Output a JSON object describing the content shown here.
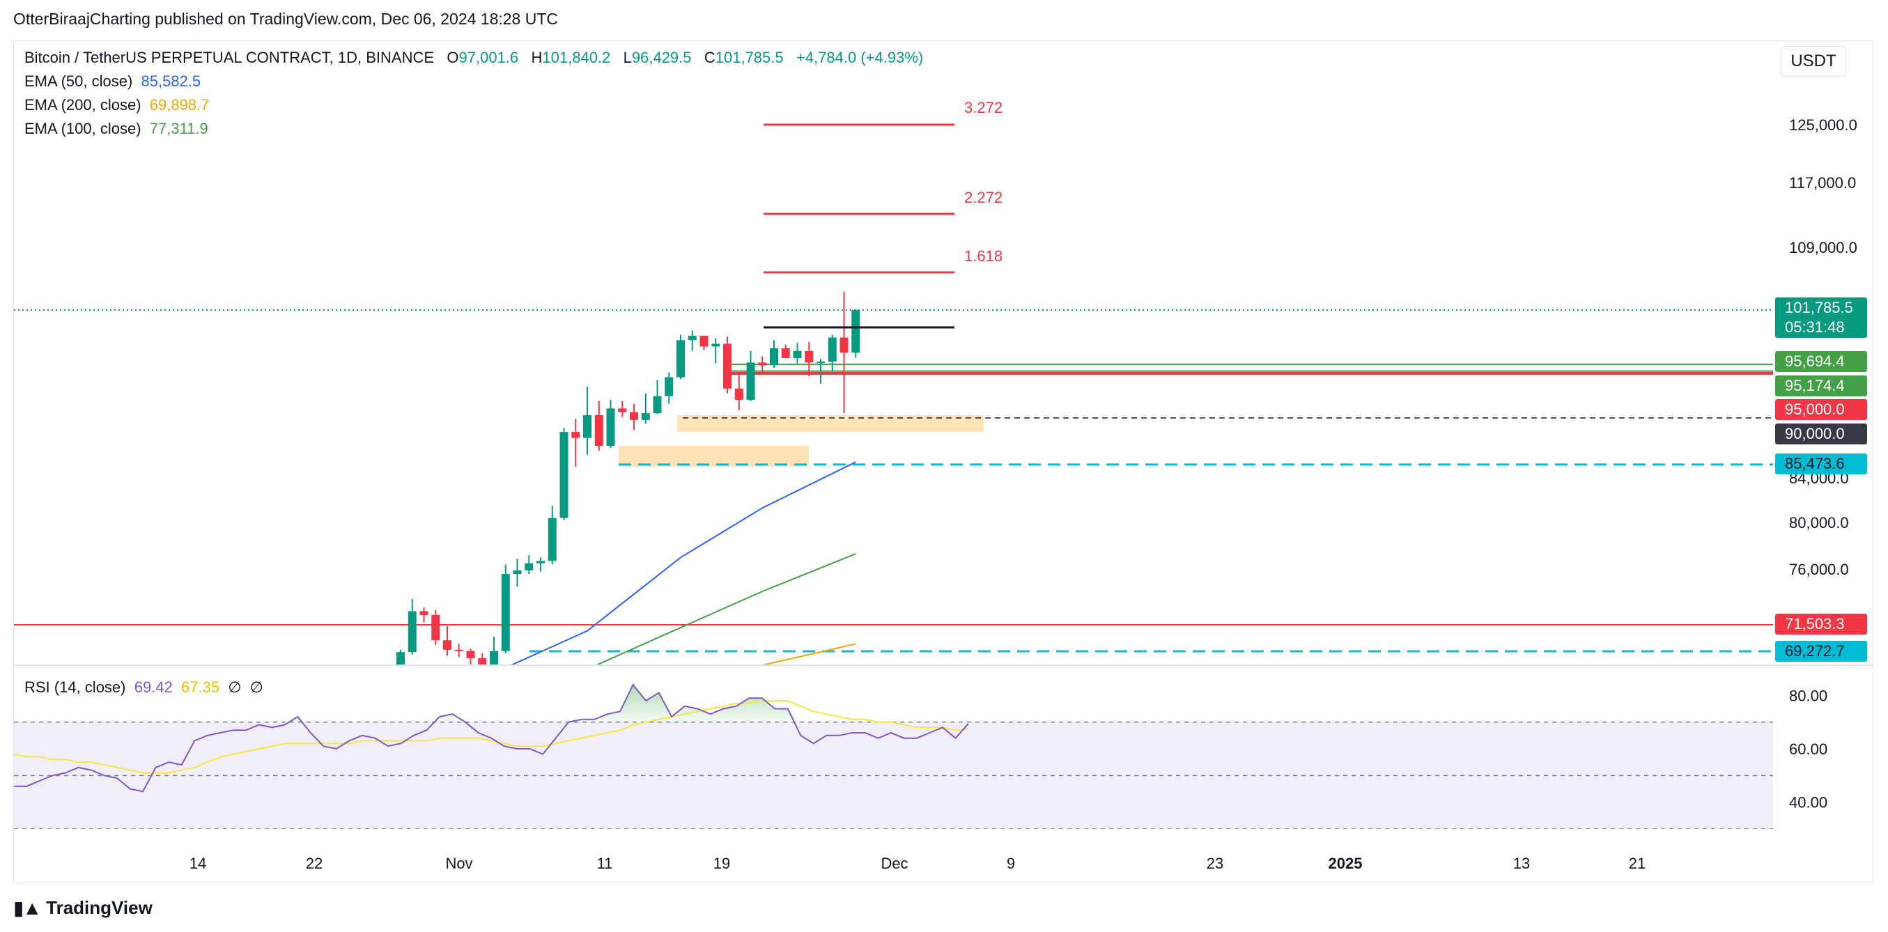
{
  "header": {
    "published": "OtterBiraajCharting published on TradingView.com, Dec 06, 2024 18:28 UTC",
    "symbol": "Bitcoin / TetherUS PERPETUAL CONTRACT, 1D, BINANCE",
    "o_label": "O",
    "o": "97,001.6",
    "h_label": "H",
    "h": "101,840.2",
    "l_label": "L",
    "l": "96,429.5",
    "c_label": "C",
    "c": "101,785.5",
    "change": "+4,784.0 (+4.93%)",
    "currency": "USDT"
  },
  "indicators": [
    {
      "label": "EMA (50, close)",
      "value": "85,582.5",
      "color": "#2962ff"
    },
    {
      "label": "EMA (200, close)",
      "value": "69,898.7",
      "color": "#f7a600"
    },
    {
      "label": "EMA (100, close)",
      "value": "77,311.9",
      "color": "#43a047"
    }
  ],
  "rsi": {
    "label": "RSI (14, close)",
    "value": "69.42",
    "ma_value": "67.35",
    "flag1": "∅",
    "flag2": "∅"
  },
  "price_axis": [
    "125,000.0",
    "117,000.0",
    "109,000.0",
    "84,000.0",
    "80,000.0",
    "76,000.0",
    "71,503.3"
  ],
  "price_tags": [
    {
      "text": "101,785.5",
      "sub": "05:31:48",
      "color": "#089981"
    },
    {
      "text": "95,694.4",
      "color": "#43a047"
    },
    {
      "text": "95,174.4",
      "color": "#43a047"
    },
    {
      "text": "95,000.0",
      "color": "#f23645"
    },
    {
      "text": "90,000.0",
      "color": "#363a45"
    },
    {
      "text": "85,473.6",
      "color": "#00bcd4",
      "text_color": "#131722"
    },
    {
      "text": "71,503.3",
      "color": "#f23645"
    },
    {
      "text": "69,272.7",
      "color": "#00bcd4",
      "text_color": "#131722"
    }
  ],
  "rsi_axis": [
    "80.00",
    "60.00",
    "40.00"
  ],
  "fib_levels": [
    "3.272",
    "2.272",
    "1.618"
  ],
  "time_axis": [
    "14",
    "22",
    "Nov",
    "11",
    "19",
    "Dec",
    "9",
    "23",
    "2025",
    "13",
    "21"
  ],
  "brand": "TradingView",
  "chart_data": {
    "type": "candlestick",
    "title": "Bitcoin / TetherUS PERPETUAL CONTRACT, 1D, BINANCE",
    "series": [
      {
        "name": "BTCUSDT.P",
        "ohlc": [
          [
            "Oct 28",
            68100,
            69400,
            67900,
            69200
          ],
          [
            "Oct 29",
            69200,
            73600,
            69000,
            72600
          ],
          [
            "Oct 30",
            72600,
            72900,
            71700,
            72300
          ],
          [
            "Oct 31",
            72300,
            72700,
            69800,
            70200
          ],
          [
            "Nov 01",
            70200,
            71400,
            68900,
            69400
          ],
          [
            "Nov 02",
            69400,
            69900,
            68800,
            69300
          ],
          [
            "Nov 03",
            69300,
            69500,
            67600,
            68700
          ],
          [
            "Nov 04",
            68700,
            69100,
            66800,
            67800
          ],
          [
            "Nov 05",
            67800,
            70500,
            67500,
            69300
          ],
          [
            "Nov 06",
            69300,
            76400,
            69100,
            75600
          ],
          [
            "Nov 07",
            75600,
            76900,
            74600,
            75900
          ],
          [
            "Nov 08",
            75900,
            77200,
            75600,
            76500
          ],
          [
            "Nov 09",
            76500,
            77000,
            75800,
            76700
          ],
          [
            "Nov 10",
            76700,
            81500,
            76400,
            80400
          ],
          [
            "Nov 11",
            80400,
            89000,
            80200,
            88600
          ],
          [
            "Nov 12",
            88600,
            89900,
            85100,
            88000
          ],
          [
            "Nov 13",
            88000,
            93300,
            86300,
            90300
          ],
          [
            "Nov 14",
            90300,
            91800,
            86700,
            87200
          ],
          [
            "Nov 15",
            87200,
            91900,
            87000,
            91000
          ],
          [
            "Nov 16",
            91000,
            91800,
            90100,
            90600
          ],
          [
            "Nov 17",
            90600,
            91500,
            88800,
            89800
          ],
          [
            "Nov 18",
            89800,
            92600,
            89400,
            90500
          ],
          [
            "Nov 19",
            90500,
            94000,
            90400,
            92300
          ],
          [
            "Nov 20",
            92300,
            94800,
            91500,
            94300
          ],
          [
            "Nov 21",
            94300,
            99000,
            94100,
            98400
          ],
          [
            "Nov 22",
            98400,
            99500,
            97200,
            98900
          ],
          [
            "Nov 23",
            98900,
            98800,
            97300,
            97700
          ],
          [
            "Nov 24",
            97700,
            98600,
            95800,
            98000
          ],
          [
            "Nov 25",
            98000,
            98800,
            92600,
            93100
          ],
          [
            "Nov 26",
            93100,
            94800,
            90800,
            91900
          ],
          [
            "Nov 27",
            91900,
            97200,
            91800,
            95900
          ],
          [
            "Nov 28",
            95900,
            96600,
            94700,
            95600
          ],
          [
            "Nov 29",
            95600,
            98400,
            95300,
            97500
          ],
          [
            "Nov 30",
            97500,
            97900,
            96400,
            96400
          ],
          [
            "Dec 01",
            96400,
            98100,
            95800,
            97200
          ],
          [
            "Dec 02",
            97200,
            98200,
            94400,
            95900
          ],
          [
            "Dec 03",
            95900,
            96300,
            93600,
            96000
          ],
          [
            "Dec 04",
            96000,
            99000,
            94700,
            98700
          ],
          [
            "Dec 05",
            98700,
            103900,
            90500,
            97000
          ],
          [
            "Dec 06",
            97001.6,
            101840.2,
            96429.5,
            101785.5
          ]
        ]
      },
      {
        "name": "EMA (50, close)",
        "points": [
          [
            "Nov 04",
            67000
          ],
          [
            "Nov 13",
            71000
          ],
          [
            "Nov 21",
            77000
          ],
          [
            "Nov 28",
            81300
          ],
          [
            "Dec 06",
            85582.5
          ]
        ]
      },
      {
        "name": "EMA (100, close)",
        "points": [
          [
            "Nov 09",
            66000
          ],
          [
            "Nov 19",
            70400
          ],
          [
            "Nov 28",
            74200
          ],
          [
            "Dec 06",
            77311.9
          ]
        ]
      },
      {
        "name": "EMA (200, close)",
        "points": [
          [
            "Nov 28",
            68100
          ],
          [
            "Dec 06",
            69898.7
          ]
        ]
      }
    ],
    "horizontal_levels": [
      95694.4,
      95174.4,
      95000.0,
      90000.0,
      85473.6,
      71503.3,
      69272.7
    ],
    "rsi_series": {
      "name": "RSI (14, close)",
      "ylim": [
        30,
        90
      ],
      "band": [
        30,
        70
      ],
      "values": [
        46,
        46,
        48,
        50,
        51,
        53,
        52,
        50,
        49,
        45,
        44,
        53,
        55,
        54,
        63,
        65,
        66,
        67,
        67,
        69,
        68,
        69,
        72,
        66,
        61,
        60,
        63,
        65,
        64,
        61,
        62,
        65,
        67,
        72,
        73,
        70,
        66,
        64,
        61,
        60,
        60,
        58,
        64,
        70,
        71,
        71,
        73,
        74,
        84,
        78,
        81,
        72,
        76,
        75,
        73,
        75,
        76,
        79,
        79,
        75,
        75,
        65,
        62,
        65,
        65,
        66,
        66,
        64,
        66,
        64,
        64,
        66,
        68,
        64,
        69.42
      ],
      "ma_values": [
        58,
        57,
        57,
        56,
        56,
        55,
        55,
        54,
        53,
        52,
        51,
        51,
        51,
        52,
        53,
        55,
        57,
        58,
        59,
        60,
        61,
        62,
        62,
        62,
        62,
        62,
        62,
        63,
        63,
        63,
        63,
        63,
        63,
        64,
        64,
        64,
        64,
        63,
        62,
        61,
        61,
        61,
        62,
        63,
        64,
        65,
        66,
        67,
        69,
        70,
        71,
        72,
        73,
        74,
        75,
        76,
        77,
        77,
        78,
        78,
        78,
        76,
        74,
        73,
        72,
        71,
        71,
        70,
        70,
        69,
        68,
        68,
        68,
        67,
        67.35
      ]
    },
    "ylim": [
      67500,
      128000
    ]
  }
}
